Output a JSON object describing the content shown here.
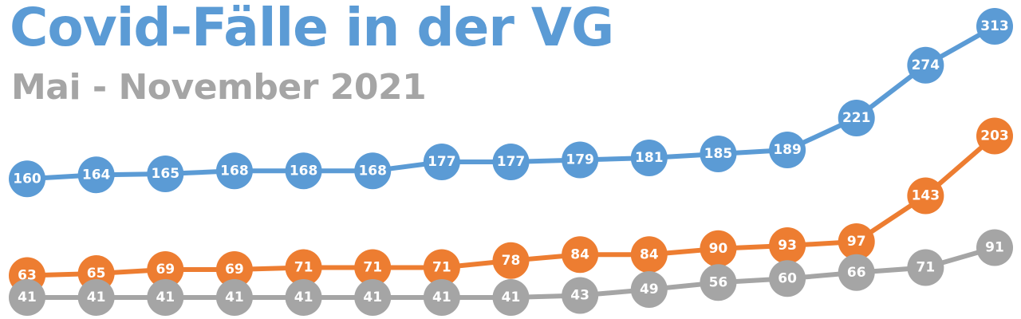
{
  "title": "Covid-Fälle in der VG",
  "subtitle": "Mai - November 2021",
  "chart_data": {
    "type": "line",
    "title": "Covid-Fälle in der VG",
    "subtitle": "Mai - November 2021",
    "xlabel": "",
    "ylabel": "",
    "grid": false,
    "legend": "none",
    "data_labels": true,
    "x": [
      1,
      2,
      3,
      4,
      5,
      6,
      7,
      8,
      9,
      10,
      11,
      12,
      13,
      14,
      15
    ],
    "ylim": [
      41,
      313
    ],
    "series": [
      {
        "color": "#5b9bd5",
        "values": [
          160,
          164,
          165,
          168,
          168,
          168,
          177,
          177,
          179,
          181,
          185,
          189,
          221,
          274,
          313
        ]
      },
      {
        "color": "#ed7d31",
        "values": [
          63,
          65,
          69,
          69,
          71,
          71,
          71,
          78,
          84,
          84,
          90,
          93,
          97,
          143,
          203
        ]
      },
      {
        "color": "#a5a5a5",
        "values": [
          41,
          41,
          41,
          41,
          41,
          41,
          41,
          41,
          43,
          49,
          56,
          60,
          66,
          71,
          91
        ]
      }
    ]
  }
}
